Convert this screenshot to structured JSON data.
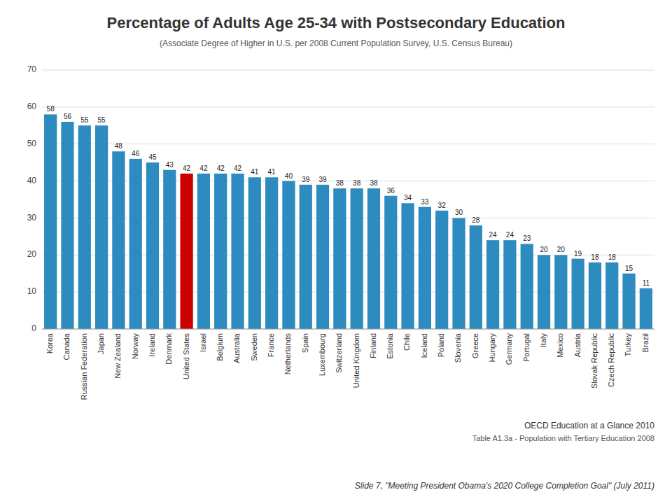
{
  "chart_data": {
    "type": "bar",
    "title": "Percentage of Adults Age 25-34 with Postsecondary Education",
    "subtitle": "(Associate Degree of Higher in U.S. per 2008 Current Population Survey, U.S. Census Bureau)",
    "categories": [
      "Korea",
      "Canada",
      "Russian Federation",
      "Japan",
      "New Zealand",
      "Norway",
      "Ireland",
      "Denmark",
      "United States",
      "Israel",
      "Belgium",
      "Australia",
      "Sweden",
      "France",
      "Netherlands",
      "Spain",
      "Luxembourg",
      "Switzerland",
      "United Kingdom",
      "Finland",
      "Estonia",
      "Chile",
      "Iceland",
      "Poland",
      "Slovenia",
      "Greece",
      "Hungary",
      "Germany",
      "Portugal",
      "Italy",
      "Mexico",
      "Austria",
      "Slovak Republic",
      "Czech Republic",
      "Turkey",
      "Brazil"
    ],
    "values": [
      58,
      56,
      55,
      55,
      48,
      46,
      45,
      43,
      42,
      42,
      42,
      42,
      41,
      41,
      40,
      39,
      39,
      38,
      38,
      38,
      36,
      34,
      33,
      32,
      30,
      28,
      24,
      24,
      23,
      20,
      20,
      19,
      18,
      18,
      15,
      11
    ],
    "colors": [
      "#2E8BC0",
      "#2E8BC0",
      "#2E8BC0",
      "#2E8BC0",
      "#2E8BC0",
      "#2E8BC0",
      "#2E8BC0",
      "#2E8BC0",
      "#CC0000",
      "#2E8BC0",
      "#2E8BC0",
      "#2E8BC0",
      "#2E8BC0",
      "#2E8BC0",
      "#2E8BC0",
      "#2E8BC0",
      "#2E8BC0",
      "#2E8BC0",
      "#2E8BC0",
      "#2E8BC0",
      "#2E8BC0",
      "#2E8BC0",
      "#2E8BC0",
      "#2E8BC0",
      "#2E8BC0",
      "#2E8BC0",
      "#2E8BC0",
      "#2E8BC0",
      "#2E8BC0",
      "#2E8BC0",
      "#2E8BC0",
      "#2E8BC0",
      "#2E8BC0",
      "#2E8BC0",
      "#2E8BC0",
      "#2E8BC0"
    ],
    "ylim": [
      0,
      70
    ],
    "yticks": [
      0,
      10,
      20,
      30,
      40,
      50,
      60,
      70
    ],
    "grid": true,
    "data_labels": true,
    "annotations": [
      "OECD Education at a Glance 2010",
      "Table A1.3a - Population with Tertiary Education 2008",
      "Slide 7, \"Meeting President Obama's 2020 College Completion Goal\" (July 2011)"
    ]
  }
}
